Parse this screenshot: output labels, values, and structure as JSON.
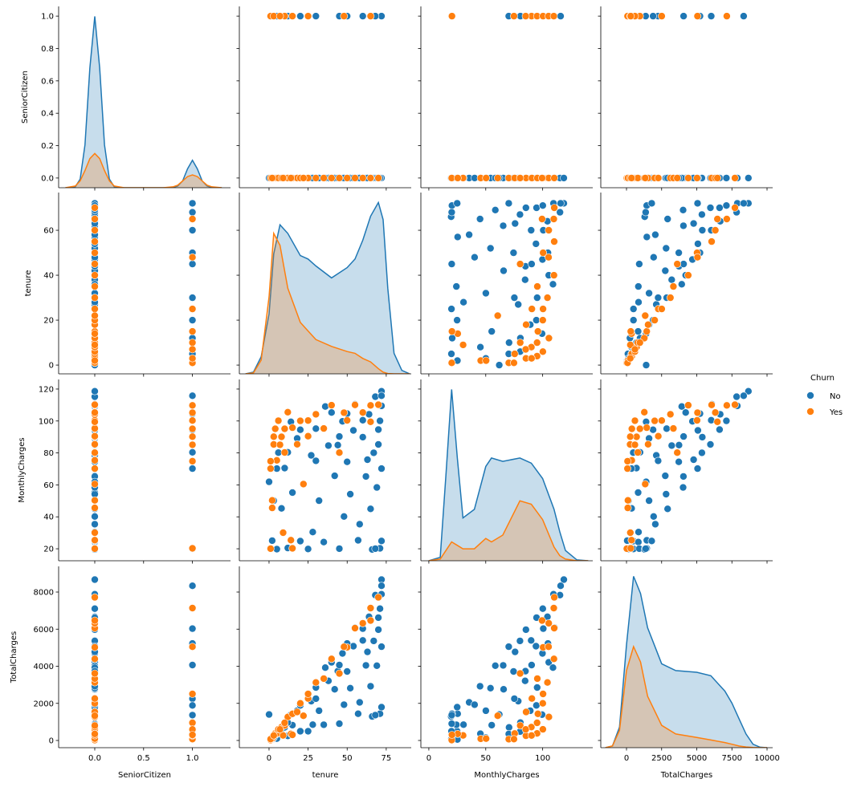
{
  "chart_data": {
    "type": "scatter",
    "kind": "pairplot",
    "grid": false,
    "legend_placement": "right",
    "variables": [
      {
        "name": "SeniorCitizen",
        "lim": [
          -0.37,
          1.39
        ],
        "ylim": [
          -0.06,
          1.06
        ],
        "xticks": [
          0,
          0.5,
          1
        ],
        "xtick_labels": [
          "0.0",
          "0.5",
          "1.0"
        ],
        "yticks": [
          0,
          0.2,
          0.4,
          0.6,
          0.8,
          1.0
        ],
        "ytick_labels": [
          "0.0",
          "0.2",
          "0.4",
          "0.6",
          "0.8",
          "1.0"
        ]
      },
      {
        "name": "tenure",
        "lim": [
          -19,
          91
        ],
        "ylim": [
          -3.9,
          76.8
        ],
        "xticks": [
          0,
          25,
          50,
          75
        ],
        "xtick_labels": [
          "0",
          "25",
          "50",
          "75"
        ],
        "yticks": [
          0,
          20,
          40,
          60
        ],
        "ytick_labels": [
          "0",
          "20",
          "40",
          "60"
        ]
      },
      {
        "name": "MonthlyCharges",
        "lim": [
          -7,
          144
        ],
        "ylim": [
          12.5,
          126
        ],
        "xticks": [
          0,
          50,
          100
        ],
        "xtick_labels": [
          "0",
          "50",
          "100"
        ],
        "yticks": [
          20,
          40,
          60,
          80,
          100,
          120
        ],
        "ytick_labels": [
          "20",
          "40",
          "60",
          "80",
          "100",
          "120"
        ]
      },
      {
        "name": "TotalCharges",
        "lim": [
          -1830,
          10400
        ],
        "ylim": [
          -389,
          9384
        ],
        "xticks": [
          0,
          2500,
          5000,
          7500,
          10000
        ],
        "xtick_labels": [
          "0",
          "2500",
          "5000",
          "7500",
          "10000"
        ],
        "yticks": [
          0,
          2000,
          4000,
          6000,
          8000
        ],
        "ytick_labels": [
          "0",
          "2000",
          "4000",
          "6000",
          "8000"
        ]
      }
    ],
    "hue": {
      "title": "Churn",
      "levels": [
        "No",
        "Yes"
      ],
      "colors": {
        "No": "#1f77b4",
        "Yes": "#ff7f0e"
      }
    },
    "points_columns": [
      "SeniorCitizen",
      "tenure",
      "MonthlyCharges",
      "TotalCharges"
    ],
    "points": {
      "No": [
        [
          0,
          1,
          20.2,
          20.2
        ],
        [
          0,
          2,
          25.1,
          50.3
        ],
        [
          0,
          5,
          19.8,
          99
        ],
        [
          0,
          8,
          45.3,
          362
        ],
        [
          0,
          10,
          70.5,
          705
        ],
        [
          0,
          12,
          20.5,
          246
        ],
        [
          0,
          15,
          55.2,
          828
        ],
        [
          0,
          18,
          89.1,
          1604
        ],
        [
          0,
          20,
          24.8,
          496
        ],
        [
          0,
          22,
          60.3,
          1327
        ],
        [
          0,
          25,
          19.9,
          498
        ],
        [
          0,
          27,
          78.5,
          2120
        ],
        [
          0,
          30,
          95.2,
          2856
        ],
        [
          0,
          32,
          50.1,
          1603
        ],
        [
          0,
          35,
          24.2,
          847
        ],
        [
          0,
          38,
          84.6,
          3215
        ],
        [
          0,
          40,
          105.3,
          4212
        ],
        [
          0,
          42,
          65.7,
          2759
        ],
        [
          0,
          45,
          20.1,
          905
        ],
        [
          0,
          47,
          99.8,
          4691
        ],
        [
          0,
          50,
          74.4,
          3720
        ],
        [
          0,
          52,
          54.2,
          2818
        ],
        [
          0,
          55,
          110.5,
          6078
        ],
        [
          0,
          57,
          25.3,
          1442
        ],
        [
          0,
          60,
          89.9,
          5394
        ],
        [
          0,
          62,
          65.3,
          4049
        ],
        [
          0,
          64,
          104.2,
          6669
        ],
        [
          0,
          66,
          19.6,
          1294
        ],
        [
          0,
          67,
          80.1,
          5367
        ],
        [
          0,
          68,
          115.2,
          7834
        ],
        [
          0,
          69,
          58.4,
          4030
        ],
        [
          0,
          70,
          94.6,
          6622
        ],
        [
          0,
          71,
          20.3,
          1441
        ],
        [
          0,
          72,
          109.5,
          7884
        ],
        [
          0,
          72,
          118.6,
          8672
        ],
        [
          0,
          72,
          24.9,
          1793
        ],
        [
          0,
          72,
          70.2,
          5054
        ],
        [
          0,
          71,
          100.1,
          7107
        ],
        [
          0,
          65,
          45.0,
          2925
        ],
        [
          0,
          58,
          35.4,
          2053
        ],
        [
          0,
          48,
          40.2,
          1930
        ],
        [
          0,
          36,
          109.1,
          3928
        ],
        [
          0,
          28,
          30.5,
          854
        ],
        [
          0,
          14,
          99.5,
          1393
        ],
        [
          0,
          6,
          80.2,
          481
        ],
        [
          0,
          3,
          50.1,
          150
        ],
        [
          0,
          70,
          85.3,
          5971
        ],
        [
          0,
          63,
          75.8,
          4775
        ],
        [
          0,
          54,
          94.1,
          5081
        ],
        [
          0,
          44,
          84.9,
          3736
        ],
        [
          1,
          60,
          100.5,
          6030
        ],
        [
          1,
          72,
          115.8,
          8338
        ],
        [
          1,
          45,
          90.3,
          4064
        ],
        [
          1,
          30,
          75.1,
          2253
        ],
        [
          1,
          12,
          80.4,
          965
        ],
        [
          1,
          68,
          20.1,
          1367
        ],
        [
          1,
          50,
          104.6,
          5230
        ],
        [
          1,
          20,
          94.5,
          1890
        ],
        [
          1,
          5,
          70.2,
          351
        ],
        [
          0,
          0,
          61.9,
          1400
        ]
      ],
      "Yes": [
        [
          0,
          1,
          70.2,
          70
        ],
        [
          0,
          1,
          20.1,
          20
        ],
        [
          0,
          2,
          45.6,
          91
        ],
        [
          0,
          3,
          85.3,
          256
        ],
        [
          0,
          4,
          95.1,
          380
        ],
        [
          0,
          5,
          75.4,
          377
        ],
        [
          0,
          6,
          100.2,
          601
        ],
        [
          0,
          8,
          90.1,
          721
        ],
        [
          0,
          10,
          80.3,
          803
        ],
        [
          0,
          12,
          105.5,
          1266
        ],
        [
          0,
          15,
          95.8,
          1437
        ],
        [
          0,
          18,
          85.4,
          1537
        ],
        [
          0,
          20,
          100.1,
          2002
        ],
        [
          0,
          25,
          90.5,
          2262
        ],
        [
          0,
          30,
          104.2,
          3126
        ],
        [
          0,
          35,
          95.3,
          3335
        ],
        [
          0,
          40,
          109.9,
          4396
        ],
        [
          0,
          45,
          80.2,
          3609
        ],
        [
          0,
          50,
          100.4,
          5020
        ],
        [
          0,
          55,
          110.1,
          6055
        ],
        [
          0,
          60,
          105.3,
          6318
        ],
        [
          0,
          65,
          99.5,
          6467
        ],
        [
          0,
          70,
          110.2,
          7714
        ],
        [
          0,
          2,
          50.3,
          100
        ],
        [
          0,
          9,
          30.1,
          271
        ],
        [
          0,
          22,
          60.5,
          1331
        ],
        [
          0,
          14,
          25.4,
          356
        ],
        [
          1,
          1,
          74.8,
          75
        ],
        [
          1,
          3,
          90.2,
          270
        ],
        [
          1,
          10,
          95.1,
          951
        ],
        [
          1,
          25,
          100.3,
          2507
        ],
        [
          1,
          48,
          105.2,
          5050
        ],
        [
          1,
          65,
          109.8,
          7137
        ],
        [
          1,
          7,
          85.1,
          596
        ],
        [
          1,
          15,
          20.3,
          304
        ]
      ]
    },
    "kde": [
      {
        "variable": "SeniorCitizen",
        "x": [
          -0.3,
          -0.2,
          -0.15,
          -0.1,
          -0.05,
          0,
          0.05,
          0.1,
          0.15,
          0.2,
          0.3,
          0.5,
          0.7,
          0.8,
          0.85,
          0.9,
          0.95,
          1,
          1.05,
          1.1,
          1.15,
          1.2,
          1.3
        ],
        "No": [
          0,
          0.005,
          0.05,
          0.25,
          0.7,
          1.0,
          0.7,
          0.25,
          0.05,
          0.005,
          0,
          0,
          0,
          0.001,
          0.01,
          0.04,
          0.11,
          0.16,
          0.11,
          0.04,
          0.01,
          0.001,
          0
        ],
        "Yes": [
          0,
          0.01,
          0.04,
          0.1,
          0.17,
          0.2,
          0.17,
          0.1,
          0.04,
          0.01,
          0,
          0,
          0,
          0.005,
          0.015,
          0.04,
          0.065,
          0.075,
          0.065,
          0.04,
          0.015,
          0.005,
          0
        ]
      },
      {
        "variable": "tenure",
        "x": [
          -15,
          -10,
          -5,
          0,
          3,
          7,
          12,
          20,
          25,
          30,
          40,
          50,
          55,
          60,
          65,
          70,
          73,
          76,
          80,
          85,
          90
        ],
        "No": [
          0,
          0.01,
          0.1,
          0.35,
          0.7,
          0.87,
          0.82,
          0.69,
          0.67,
          0.63,
          0.56,
          0.62,
          0.67,
          0.78,
          0.92,
          1.0,
          0.9,
          0.5,
          0.12,
          0.02,
          0
        ],
        "Yes": [
          0,
          0.005,
          0.08,
          0.45,
          0.82,
          0.75,
          0.5,
          0.3,
          0.25,
          0.2,
          0.16,
          0.13,
          0.12,
          0.09,
          0.07,
          0.03,
          0.01,
          0.002,
          0,
          0,
          0
        ]
      },
      {
        "variable": "MonthlyCharges",
        "x": [
          0,
          10,
          15,
          20,
          25,
          30,
          40,
          50,
          55,
          65,
          80,
          90,
          100,
          110,
          115,
          120,
          130,
          140
        ],
        "No": [
          0,
          0.02,
          0.5,
          1.0,
          0.6,
          0.25,
          0.3,
          0.55,
          0.6,
          0.58,
          0.6,
          0.57,
          0.48,
          0.3,
          0.17,
          0.06,
          0.005,
          0
        ],
        "Yes": [
          0,
          0.01,
          0.06,
          0.11,
          0.09,
          0.07,
          0.07,
          0.13,
          0.11,
          0.15,
          0.35,
          0.33,
          0.24,
          0.08,
          0.03,
          0.01,
          0,
          0
        ]
      },
      {
        "variable": "TotalCharges",
        "x": [
          -1500,
          -1000,
          -500,
          0,
          500,
          1000,
          1500,
          2500,
          3500,
          5000,
          6000,
          7000,
          7500,
          8000,
          8500,
          9000,
          9500,
          10000
        ],
        "No": [
          0,
          0.01,
          0.12,
          0.6,
          1.0,
          0.9,
          0.7,
          0.49,
          0.45,
          0.44,
          0.42,
          0.33,
          0.26,
          0.17,
          0.08,
          0.02,
          0.003,
          0
        ],
        "Yes": [
          0,
          0.01,
          0.1,
          0.45,
          0.59,
          0.5,
          0.3,
          0.13,
          0.08,
          0.06,
          0.045,
          0.03,
          0.02,
          0.01,
          0.004,
          0.001,
          0,
          0
        ]
      }
    ]
  }
}
